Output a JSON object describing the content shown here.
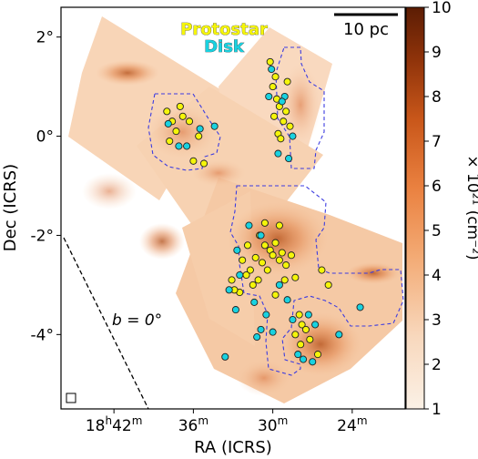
{
  "chart_data": {
    "type": "scatter",
    "title": "",
    "xlabel": "RA (ICRS)",
    "ylabel": "Dec (ICRS)",
    "xlim": [
      46,
      20
    ],
    "ylim": [
      -5.5,
      2.6
    ],
    "x_ticks": [
      {
        "value": 42,
        "label_main": "18",
        "sup1": "h",
        "label_mid": "42",
        "sup2": "m"
      },
      {
        "value": 36,
        "label_main": "36",
        "sup1": "m",
        "label_mid": "",
        "sup2": ""
      },
      {
        "value": 30,
        "label_main": "30",
        "sup1": "m",
        "label_mid": "",
        "sup2": ""
      },
      {
        "value": 24,
        "label_main": "24",
        "sup1": "m",
        "label_mid": "",
        "sup2": ""
      }
    ],
    "y_ticks": [
      {
        "value": 2,
        "label": "2°"
      },
      {
        "value": 0,
        "label": "0°"
      },
      {
        "value": -2,
        "label": "-2°"
      },
      {
        "value": -4,
        "label": "-4°"
      }
    ],
    "legend": {
      "placement": "top-center",
      "entries": [
        {
          "name": "Protostar",
          "color": "#f5f50a"
        },
        {
          "name": "Disk",
          "color": "#19d2e0"
        }
      ]
    },
    "scale_bar": {
      "label": "10 pc"
    },
    "galactic_plane_label": "b = 0°",
    "colorbar": {
      "label": "× 10²¹ (cm⁻²)",
      "min": 1,
      "max": 10,
      "ticks": [
        "1",
        "2",
        "3",
        "4",
        "5",
        "6",
        "7",
        "8",
        "9",
        "10"
      ],
      "colors": [
        "#fbf1e6",
        "#f7c49a",
        "#f0954f",
        "#d9641f",
        "#a23c0c",
        "#5c1d04"
      ]
    },
    "series": [
      {
        "name": "Protostar",
        "color": "#f5f50a",
        "points": [
          [
            38.0,
            0.5
          ],
          [
            37.6,
            0.3
          ],
          [
            37.0,
            0.6
          ],
          [
            36.8,
            0.4
          ],
          [
            37.3,
            0.1
          ],
          [
            36.3,
            0.3
          ],
          [
            35.6,
            0.0
          ],
          [
            37.8,
            -0.1
          ],
          [
            36.0,
            -0.5
          ],
          [
            35.2,
            -0.55
          ],
          [
            30.2,
            1.5
          ],
          [
            29.8,
            1.2
          ],
          [
            30.0,
            1.0
          ],
          [
            29.5,
            0.6
          ],
          [
            29.9,
            0.4
          ],
          [
            29.2,
            0.3
          ],
          [
            29.0,
            0.5
          ],
          [
            29.6,
            0.05
          ],
          [
            28.7,
            0.2
          ],
          [
            29.4,
            -0.05
          ],
          [
            28.9,
            1.1
          ],
          [
            29.7,
            0.75
          ],
          [
            31.0,
            -2.0
          ],
          [
            30.6,
            -2.2
          ],
          [
            30.2,
            -2.3
          ],
          [
            30.0,
            -2.4
          ],
          [
            29.8,
            -2.15
          ],
          [
            29.5,
            -2.5
          ],
          [
            29.3,
            -2.35
          ],
          [
            29.0,
            -2.6
          ],
          [
            30.8,
            -2.55
          ],
          [
            31.3,
            -2.45
          ],
          [
            31.7,
            -2.7
          ],
          [
            32.0,
            -2.8
          ],
          [
            30.4,
            -2.7
          ],
          [
            31.5,
            -3.0
          ],
          [
            31.1,
            -2.9
          ],
          [
            32.3,
            -2.5
          ],
          [
            29.1,
            -2.9
          ],
          [
            28.3,
            -2.85
          ],
          [
            26.3,
            -2.7
          ],
          [
            30.6,
            -1.75
          ],
          [
            29.5,
            -1.8
          ],
          [
            32.5,
            -3.15
          ],
          [
            32.9,
            -3.1
          ],
          [
            33.1,
            -2.9
          ],
          [
            28.6,
            -2.4
          ],
          [
            31.9,
            -2.2
          ],
          [
            28.0,
            -3.6
          ],
          [
            27.8,
            -3.8
          ],
          [
            27.5,
            -3.9
          ],
          [
            28.3,
            -4.0
          ],
          [
            27.9,
            -4.2
          ],
          [
            27.2,
            -4.1
          ],
          [
            25.8,
            -3.0
          ],
          [
            29.8,
            -3.2
          ],
          [
            26.6,
            -4.4
          ]
        ]
      },
      {
        "name": "Disk",
        "color": "#19d2e0",
        "points": [
          [
            37.9,
            0.25
          ],
          [
            37.1,
            -0.2
          ],
          [
            36.5,
            -0.2
          ],
          [
            35.5,
            0.15
          ],
          [
            34.4,
            0.2
          ],
          [
            30.1,
            1.35
          ],
          [
            30.3,
            0.8
          ],
          [
            29.1,
            0.8
          ],
          [
            29.6,
            -0.35
          ],
          [
            28.8,
            -0.45
          ],
          [
            28.5,
            0.0
          ],
          [
            29.3,
            0.7
          ],
          [
            31.8,
            -1.8
          ],
          [
            32.7,
            -2.3
          ],
          [
            32.5,
            -2.8
          ],
          [
            33.3,
            -3.1
          ],
          [
            31.4,
            -3.35
          ],
          [
            30.5,
            -3.6
          ],
          [
            30.9,
            -3.9
          ],
          [
            30.0,
            -3.95
          ],
          [
            31.2,
            -4.05
          ],
          [
            32.8,
            -3.5
          ],
          [
            27.3,
            -3.6
          ],
          [
            28.5,
            -3.7
          ],
          [
            26.8,
            -3.8
          ],
          [
            28.1,
            -4.4
          ],
          [
            27.7,
            -4.5
          ],
          [
            27.0,
            -4.55
          ],
          [
            25.0,
            -4.0
          ],
          [
            23.4,
            -3.45
          ],
          [
            33.6,
            -4.45
          ],
          [
            30.9,
            -2.0
          ],
          [
            29.5,
            -3.0
          ],
          [
            28.9,
            -3.3
          ]
        ]
      }
    ]
  }
}
